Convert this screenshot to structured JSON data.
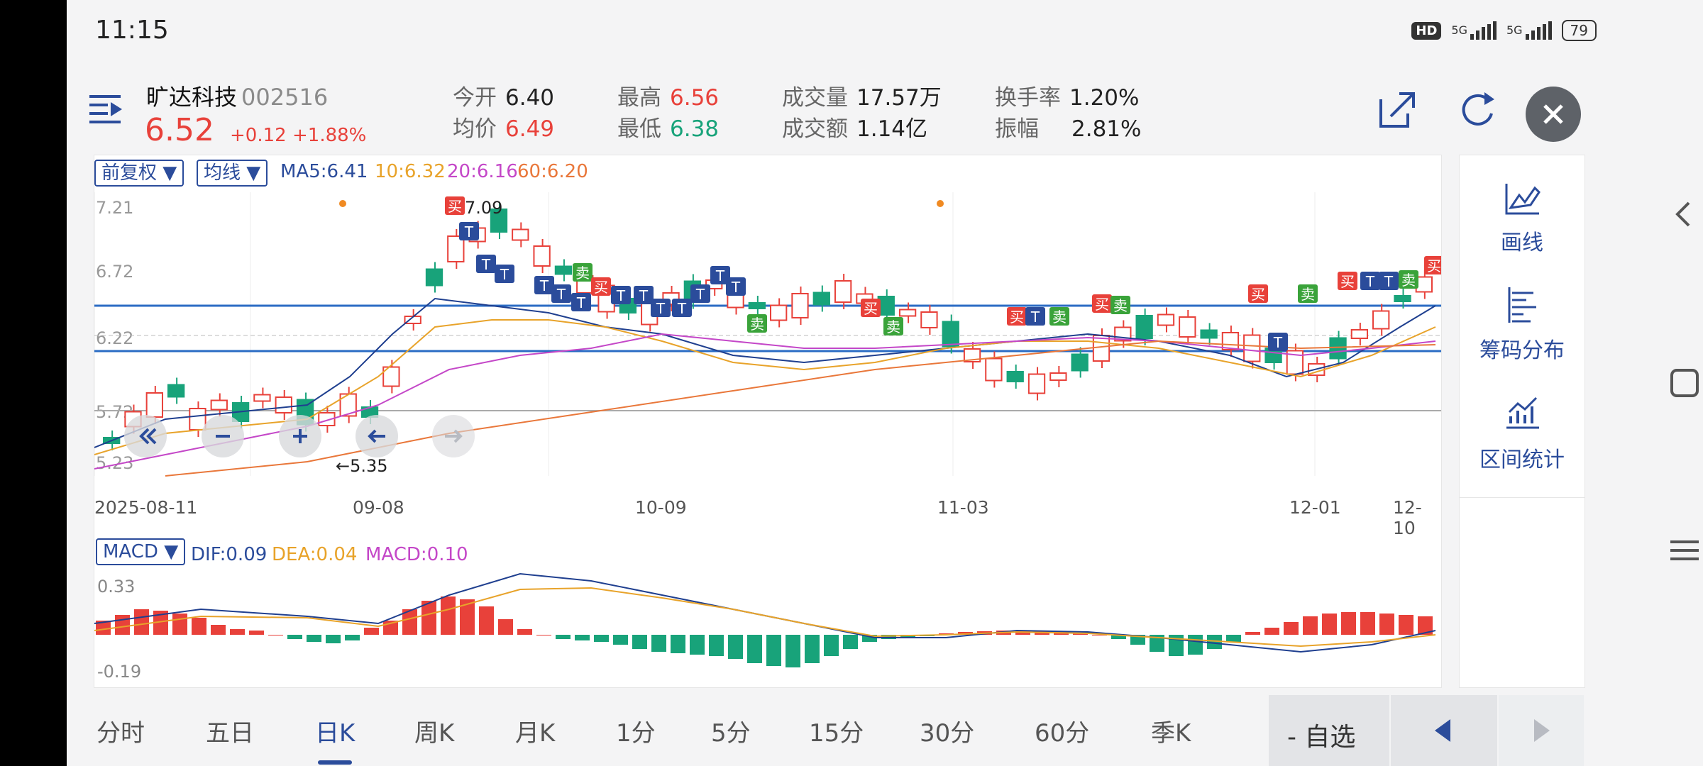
{
  "status_bar": {
    "time": "11:15",
    "hd": "HD",
    "net1": "5G",
    "net2": "5G",
    "battery": "79"
  },
  "stock": {
    "name": "旷达科技",
    "code": "002516",
    "price": "6.52",
    "change": "+0.12",
    "change_pct": "+1.88%"
  },
  "quotes": {
    "open_label": "今开",
    "open": "6.40",
    "avg_label": "均价",
    "avg": "6.49",
    "high_label": "最高",
    "high": "6.56",
    "low_label": "最低",
    "low": "6.38",
    "vol_label": "成交量",
    "vol": "17.57万",
    "amt_label": "成交额",
    "amt": "1.14亿",
    "turnover_label": "换手率",
    "turnover": "1.20%",
    "amp_label": "振幅",
    "amp": "2.81%"
  },
  "chart_controls": {
    "adjust": "前复权 ▼",
    "ma_select": "均线 ▼",
    "ma5": "MA5:6.41",
    "ma10": "10:6.32",
    "ma20": "20:6.16",
    "ma60": "60:6.20"
  },
  "kline": {
    "y_labels": [
      "7.21",
      "6.72",
      "6.22",
      "5.72",
      "5.23"
    ],
    "x_labels": [
      "2025-08-11",
      "09-08",
      "10-09",
      "11-03",
      "12-01",
      "12-10"
    ],
    "high_note": "7.09",
    "low_note": "←5.35",
    "markers": {
      "buy": "买",
      "sell": "卖",
      "t": "T"
    }
  },
  "macd": {
    "select": "MACD ▼",
    "dif": "DIF:0.09",
    "dea": "DEA:0.04",
    "macd": "MACD:0.10",
    "y_top": "0.33",
    "y_bottom": "-0.19"
  },
  "side_tools": {
    "draw": "画线",
    "chips": "筹码分布",
    "interval": "区间统计"
  },
  "tabs": [
    "分时",
    "五日",
    "日K",
    "周K",
    "月K",
    "1分",
    "5分",
    "15分",
    "30分",
    "60分",
    "季K"
  ],
  "watchlist_btn": "- 自选",
  "colors": {
    "up": "#e8413a",
    "down": "#18a37a",
    "accent": "#2b4c9b",
    "ma10": "#e8a32a",
    "ma20": "#c447c8",
    "ma60": "#e9773a"
  }
}
